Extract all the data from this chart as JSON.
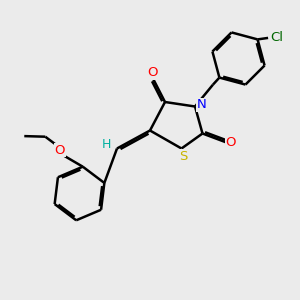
{
  "background_color": "#ebebeb",
  "bg_rgb": [
    0.922,
    0.922,
    0.922
  ],
  "bond_color": "#000000",
  "lw": 1.8,
  "atom_colors": {
    "O": "#ff0000",
    "N": "#0000ff",
    "S": "#c8b400",
    "Cl": "#006600",
    "H": "#00b0a0"
  },
  "font_size": 9.5
}
